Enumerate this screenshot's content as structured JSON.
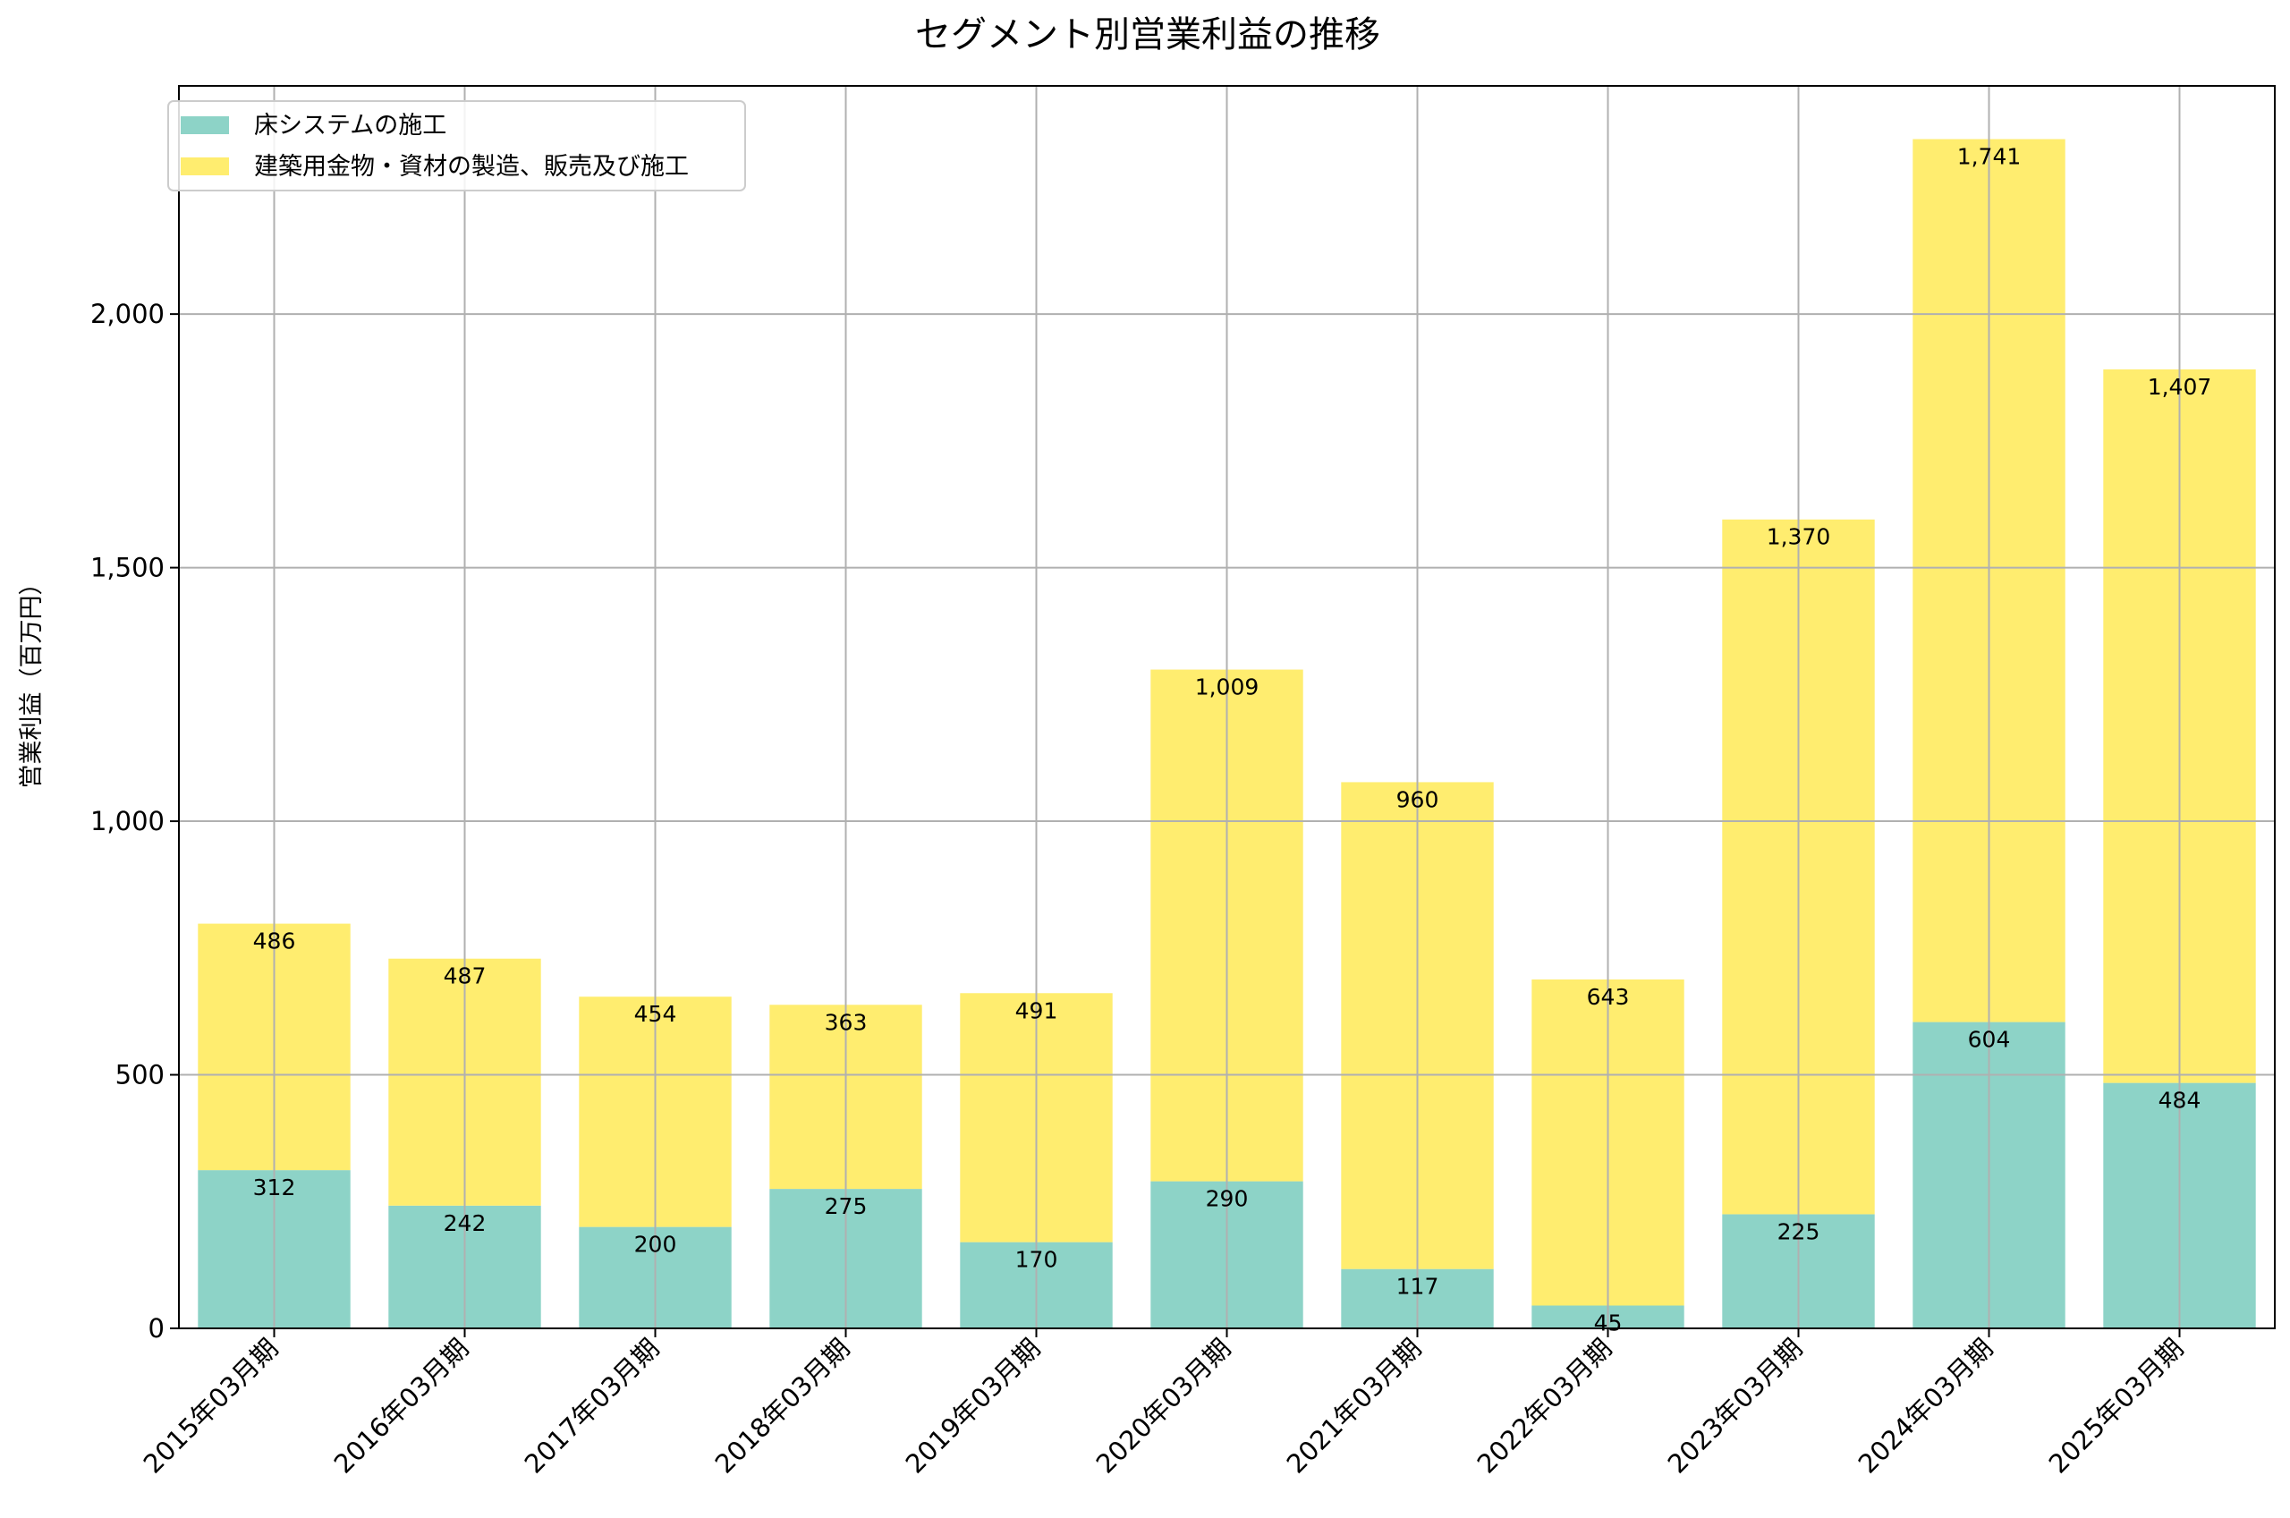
{
  "chart_data": {
    "type": "bar",
    "stacked": true,
    "title": "セグメント別営業利益の推移",
    "xlabel": "",
    "ylabel": "営業利益（百万円）",
    "ylim": [
      0,
      2450
    ],
    "yticks": [
      0,
      500,
      1000,
      1500,
      2000
    ],
    "ytick_labels": [
      "0",
      "500",
      "1,000",
      "1,500",
      "2,000"
    ],
    "grid": true,
    "legend_position": "top-left",
    "categories": [
      "2015年03月期",
      "2016年03月期",
      "2017年03月期",
      "2018年03月期",
      "2019年03月期",
      "2020年03月期",
      "2021年03月期",
      "2022年03月期",
      "2023年03月期",
      "2024年03月期",
      "2025年03月期"
    ],
    "series": [
      {
        "name": "床システムの施工",
        "color": "#8dd3c7",
        "values": [
          312,
          242,
          200,
          275,
          170,
          290,
          117,
          45,
          225,
          604,
          484
        ],
        "value_labels": [
          "312",
          "242",
          "200",
          "275",
          "170",
          "290",
          "117",
          "45",
          "225",
          "604",
          "484"
        ]
      },
      {
        "name": "建築用金物・資材の製造、販売及び施工",
        "color": "#ffed6f",
        "values": [
          486,
          487,
          454,
          363,
          491,
          1009,
          960,
          643,
          1370,
          1741,
          1407
        ],
        "value_labels": [
          "486",
          "487",
          "454",
          "363",
          "491",
          "1,009",
          "960",
          "643",
          "1,370",
          "1,741",
          "1,407"
        ]
      }
    ]
  }
}
